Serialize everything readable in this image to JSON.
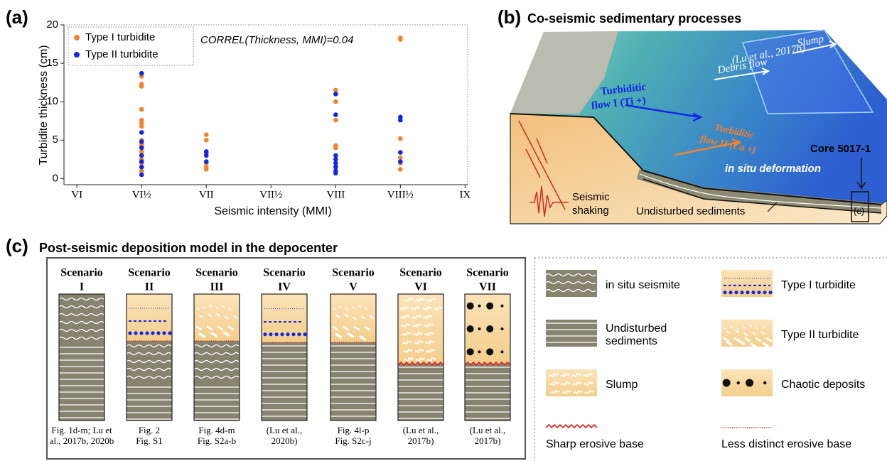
{
  "chart_data": {
    "type": "scatter",
    "panel_label": "(a)",
    "y_label": "Turbidite thickness (cm)",
    "x_label": "Seismic intensity (MMI)",
    "annotation": "CORREL(Thickness, MMI)=0.04",
    "xlim": [
      5.9,
      9.02
    ],
    "ylim": [
      -0.8,
      20
    ],
    "xticks": [
      {
        "value": 6,
        "label": "VI"
      },
      {
        "value": 6.5,
        "label": "VI½"
      },
      {
        "value": 7,
        "label": "VII"
      },
      {
        "value": 7.5,
        "label": "VII½"
      },
      {
        "value": 8,
        "label": "VIII"
      },
      {
        "value": 8.5,
        "label": "VIII½"
      },
      {
        "value": 9,
        "label": "IX"
      }
    ],
    "yticks": [
      0,
      5,
      10,
      15,
      20
    ],
    "legend": "upper left",
    "series": [
      {
        "name": "Type I turbidite",
        "color": "#f5812a",
        "x": [
          6.5,
          6.5,
          6.5,
          6.5,
          6.5,
          6.5,
          6.5,
          6.5,
          6.5,
          6.5,
          6.5,
          6.5,
          6.5,
          6.5,
          6.5,
          6.5,
          7,
          7,
          7,
          7,
          7,
          7,
          8,
          8,
          8,
          8,
          8,
          8,
          8.5,
          8.5,
          8.5,
          8.5,
          8.5,
          8.5
        ],
        "values": [
          13.3,
          12.3,
          12.0,
          9.0,
          7.6,
          7.2,
          6.8,
          5.0,
          4.5,
          4.2,
          3.5,
          3.0,
          2.5,
          2.0,
          1.5,
          1.0,
          5.7,
          5.0,
          3.3,
          2.0,
          1.5,
          1.2,
          11.5,
          10.0,
          7.6,
          4.3,
          4.0,
          1.5,
          18.3,
          18.1,
          5.2,
          2.7,
          2.0,
          1.2
        ]
      },
      {
        "name": "Type II turbidite",
        "color": "#1326e8",
        "x": [
          6.5,
          6.5,
          6.5,
          6.5,
          6.5,
          6.5,
          6.5,
          6.5,
          7,
          7,
          7,
          8,
          8,
          8,
          8,
          8,
          8,
          8,
          8,
          8.5,
          8.5,
          8.5,
          8.5
        ],
        "values": [
          13.7,
          6.0,
          4.8,
          4.0,
          3.0,
          2.2,
          1.5,
          0.5,
          3.5,
          3.0,
          2.2,
          11.0,
          8.3,
          3.0,
          2.5,
          2.0,
          1.5,
          1.0,
          0.7,
          8.0,
          7.6,
          3.4,
          2.2
        ]
      }
    ]
  },
  "panel_b": {
    "label": "(b)",
    "title": "Co-seismic sedimentary processes",
    "slump": "Slump",
    "citation": "(Lu et al., 2017b)",
    "debris_flow": "Debris flow",
    "turbiditic_flow_1": [
      "Turbiditic",
      "flow I (Ti +)"
    ],
    "turbiditic_flow_2": [
      "Turbiditic",
      "flow II (Ca +)"
    ],
    "core": "Core 5017-1",
    "deformation": "in situ deformation",
    "inset": "(c)",
    "shaking": [
      "Seismic",
      "shaking"
    ],
    "undisturbed": "Undisturbed sediments"
  },
  "panel_c": {
    "label": "(c)",
    "title": "Post-seismic deposition model in the depocenter",
    "scenarios": [
      {
        "title": "Scenario",
        "number": "I",
        "caption": [
          "Fig. 1d-m; Lu et",
          "al., 2017b, 2020b"
        ]
      },
      {
        "title": "Scenario",
        "number": "II",
        "caption": [
          "Fig. 2",
          "Fig. S1"
        ]
      },
      {
        "title": "Scenario",
        "number": "III",
        "caption": [
          "Fig. 4d-m",
          "Fig. S2a-b"
        ]
      },
      {
        "title": "Scenario",
        "number": "IV",
        "caption": [
          "(Lu et al.,",
          "2020b)"
        ]
      },
      {
        "title": "Scenario",
        "number": "V",
        "caption": [
          "Fig. 4l-p",
          "Fig. S2c-j"
        ]
      },
      {
        "title": "Scenario",
        "number": "VI",
        "caption": [
          "(Lu et al.,",
          "2017b)"
        ]
      },
      {
        "title": "Scenario",
        "number": "VII",
        "caption": [
          "(Lu et al.,",
          "2017b)"
        ]
      }
    ],
    "legend": [
      {
        "label": [
          "in situ seismite"
        ]
      },
      {
        "label": [
          "Undisturbed",
          "sediments"
        ]
      },
      {
        "label": [
          "Slump"
        ]
      },
      {
        "label": [
          "Sharp erosive base"
        ]
      },
      {
        "label": [
          "Type I turbidite"
        ]
      },
      {
        "label": [
          "Type II turbidite"
        ]
      },
      {
        "label": [
          "Chaotic deposits"
        ]
      },
      {
        "label": [
          "Less distinct erosive base"
        ]
      }
    ]
  }
}
